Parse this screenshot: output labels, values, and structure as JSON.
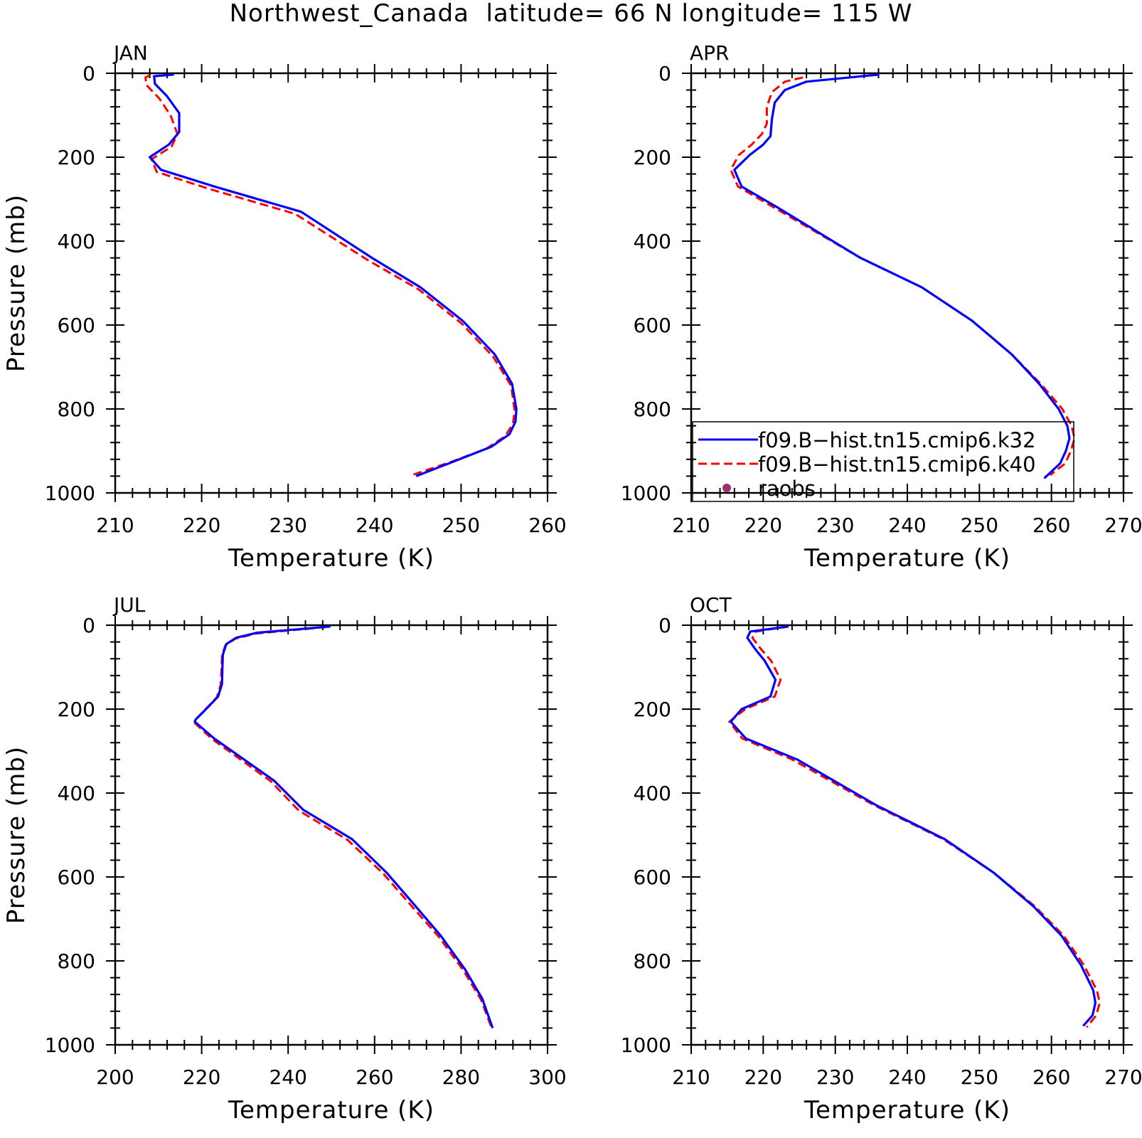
{
  "title": "Northwest_Canada  latitude= 66 N longitude= 115 W",
  "colors": {
    "k32": "#0000ff",
    "k40": "#ff0000",
    "raobs": "#a0306a",
    "axis": "#000000"
  },
  "legend": {
    "items": [
      {
        "label": "f09.B−hist.tn15.cmip6.k32",
        "style": "solid",
        "color": "#0000ff"
      },
      {
        "label": "f09.B−hist.tn15.cmip6.k40",
        "style": "dashed",
        "color": "#ff0000"
      },
      {
        "label": "raobs",
        "style": "marker",
        "color": "#a0306a"
      }
    ]
  },
  "chart_data": [
    {
      "type": "line",
      "label": "JAN",
      "xlabel": "Temperature (K)",
      "ylabel": "Pressure (mb)",
      "xlim": [
        210,
        260
      ],
      "xticks": [
        210,
        220,
        230,
        240,
        250,
        260
      ],
      "ylim": [
        0,
        1000
      ],
      "yticks": [
        0,
        200,
        400,
        600,
        800,
        1000
      ],
      "y_inverted": true,
      "show_legend": false,
      "series": [
        {
          "key": "k32",
          "x": [
            216.8,
            214.5,
            214.6,
            216.0,
            217.4,
            217.4,
            216.2,
            214.0,
            215.3,
            221.5,
            231.5,
            239.7,
            245.3,
            250.2,
            253.9,
            255.9,
            256.4,
            256.3,
            255.6,
            253.5,
            249.8,
            244.8
          ],
          "y": [
            3,
            7,
            25,
            55,
            95,
            140,
            170,
            200,
            230,
            270,
            330,
            440,
            510,
            590,
            670,
            740,
            800,
            830,
            860,
            890,
            920,
            960
          ]
        },
        {
          "key": "k40",
          "x": [
            214.0,
            213.5,
            213.6,
            215.1,
            216.4,
            217.2,
            216.5,
            214.2,
            214.8,
            220.8,
            230.8,
            239.2,
            245.1,
            250.0,
            253.7,
            255.8,
            256.2,
            256.0,
            255.1,
            252.9,
            249.0,
            244.4
          ],
          "y": [
            5,
            10,
            28,
            60,
            100,
            145,
            175,
            205,
            235,
            275,
            335,
            445,
            515,
            595,
            675,
            745,
            805,
            835,
            865,
            895,
            925,
            957
          ]
        }
      ]
    },
    {
      "type": "line",
      "label": "APR",
      "xlabel": "Temperature (K)",
      "ylabel": "",
      "xlim": [
        210,
        270
      ],
      "xticks": [
        210,
        220,
        230,
        240,
        250,
        260,
        270
      ],
      "ylim": [
        0,
        1000
      ],
      "yticks": [
        0,
        200,
        400,
        600,
        800,
        1000
      ],
      "y_inverted": true,
      "show_legend": true,
      "series": [
        {
          "key": "k32",
          "x": [
            236.1,
            226.0,
            223.0,
            221.6,
            221.2,
            221.0,
            220.0,
            218.1,
            216.0,
            217.0,
            222.0,
            233.5,
            242.0,
            249.0,
            254.5,
            258.3,
            261.0,
            262.2,
            262.5,
            262.0,
            261.2,
            259.0
          ],
          "y": [
            3,
            20,
            40,
            70,
            110,
            150,
            170,
            195,
            230,
            270,
            320,
            440,
            510,
            590,
            670,
            740,
            800,
            840,
            870,
            900,
            930,
            965
          ]
        },
        {
          "key": "k40",
          "x": [
            225.5,
            223.0,
            221.2,
            220.5,
            220.5,
            219.8,
            218.4,
            216.6,
            215.5,
            216.5,
            221.5,
            233.5,
            242.0,
            249.0,
            254.5,
            258.5,
            261.5,
            262.8,
            263.2,
            262.7,
            261.9,
            259.8
          ],
          "y": [
            10,
            20,
            45,
            80,
            120,
            145,
            170,
            195,
            230,
            270,
            320,
            440,
            510,
            590,
            670,
            740,
            800,
            840,
            870,
            900,
            930,
            958
          ]
        }
      ]
    },
    {
      "type": "line",
      "label": "JUL",
      "xlabel": "Temperature (K)",
      "ylabel": "Pressure (mb)",
      "xlim": [
        200,
        300
      ],
      "xticks": [
        200,
        220,
        240,
        260,
        280,
        300
      ],
      "ylim": [
        0,
        1000
      ],
      "yticks": [
        0,
        200,
        400,
        600,
        800,
        1000
      ],
      "y_inverted": true,
      "show_legend": false,
      "series": [
        {
          "key": "k32",
          "x": [
            249.8,
            232.8,
            228.0,
            225.7,
            224.9,
            224.8,
            224.7,
            223.8,
            221.5,
            218.6,
            218.4,
            222.9,
            236.7,
            243.5,
            254.8,
            262.8,
            269.5,
            275.3,
            280.9,
            284.9,
            287.3
          ],
          "y": [
            3,
            18,
            30,
            45,
            70,
            100,
            140,
            170,
            195,
            225,
            230,
            270,
            370,
            440,
            510,
            590,
            670,
            740,
            820,
            890,
            960
          ]
        },
        {
          "key": "k40",
          "x": [
            249.0,
            232.5,
            227.8,
            225.5,
            224.7,
            224.6,
            224.4,
            223.5,
            221.2,
            218.5,
            218.3,
            222.5,
            236.0,
            242.5,
            253.8,
            262.0,
            268.8,
            274.8,
            280.5,
            284.6,
            287.0
          ],
          "y": [
            4,
            20,
            32,
            48,
            72,
            102,
            142,
            172,
            197,
            226,
            232,
            272,
            372,
            442,
            512,
            592,
            672,
            742,
            822,
            892,
            958
          ]
        }
      ]
    },
    {
      "type": "line",
      "label": "OCT",
      "xlabel": "Temperature (K)",
      "ylabel": "",
      "xlim": [
        210,
        270
      ],
      "xticks": [
        210,
        220,
        230,
        240,
        250,
        260,
        270
      ],
      "ylim": [
        0,
        1000
      ],
      "yticks": [
        0,
        200,
        400,
        600,
        800,
        1000
      ],
      "y_inverted": true,
      "show_legend": false,
      "series": [
        {
          "key": "k32",
          "x": [
            223.5,
            218.2,
            217.8,
            218.8,
            220.2,
            221.7,
            221.0,
            217.0,
            215.5,
            217.6,
            224.7,
            235.8,
            245.2,
            252.0,
            257.5,
            261.4,
            264.1,
            265.8,
            266.1,
            265.7,
            264.4
          ],
          "y": [
            3,
            15,
            30,
            55,
            85,
            130,
            170,
            200,
            230,
            270,
            320,
            430,
            510,
            590,
            670,
            740,
            810,
            870,
            900,
            930,
            955
          ]
        },
        {
          "key": "k40",
          "x": [
            223.5,
            219.0,
            218.5,
            219.6,
            221.1,
            222.4,
            221.6,
            217.5,
            215.3,
            217.1,
            224.0,
            235.5,
            245.0,
            252.0,
            257.7,
            261.7,
            264.5,
            266.3,
            266.7,
            266.2,
            264.9
          ],
          "y": [
            3,
            15,
            30,
            55,
            85,
            130,
            170,
            200,
            230,
            270,
            320,
            430,
            510,
            590,
            670,
            740,
            810,
            870,
            900,
            930,
            958
          ]
        }
      ]
    }
  ]
}
